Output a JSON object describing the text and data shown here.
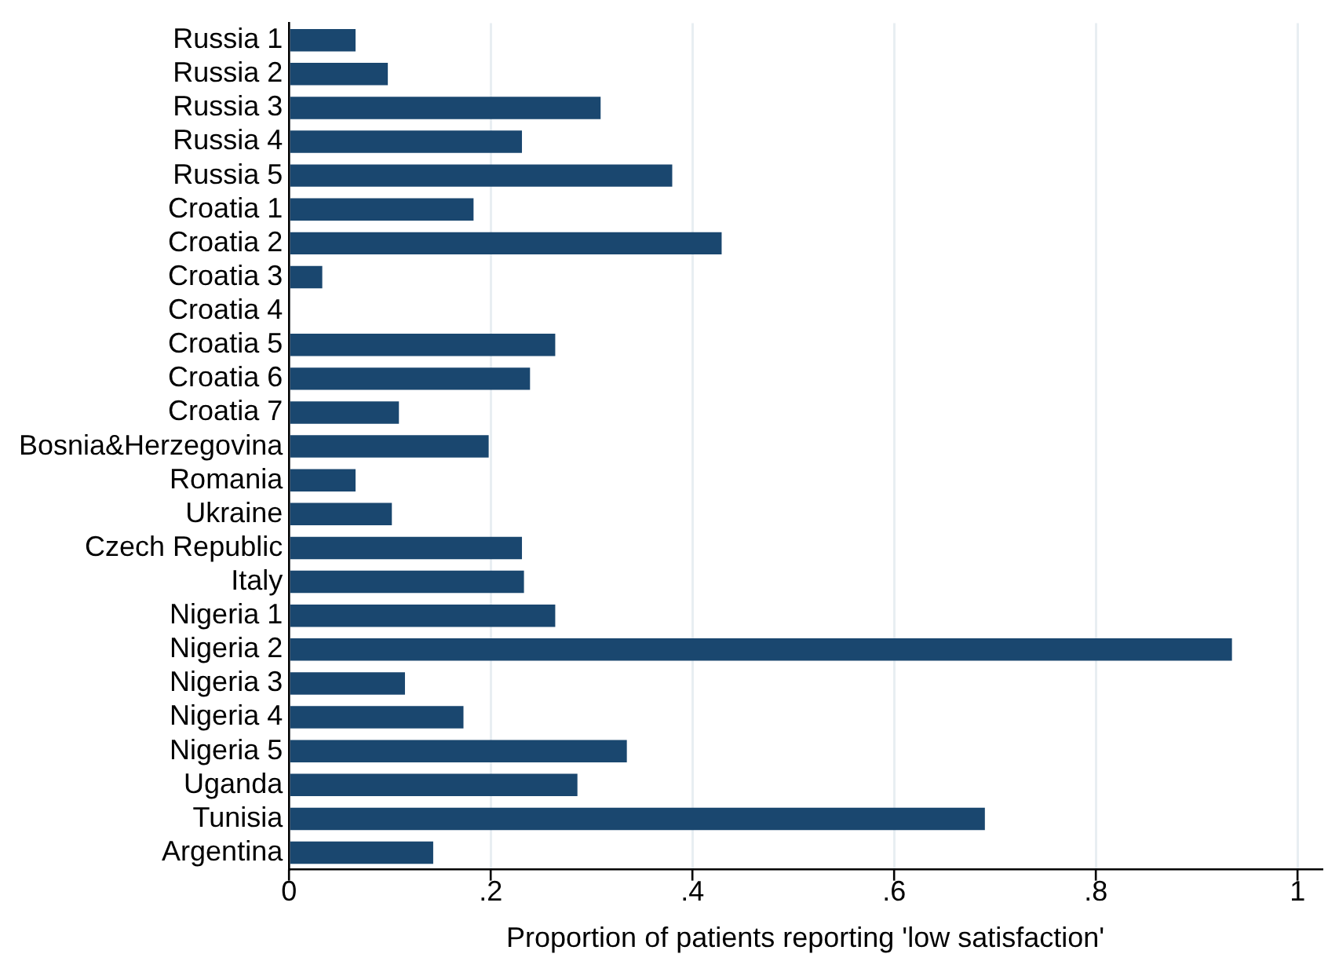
{
  "chart_data": {
    "type": "bar",
    "orientation": "horizontal",
    "xlabel": "Proportion of patients reporting 'low satisfaction'",
    "categories": [
      "Russia 1",
      "Russia 2",
      "Russia 3",
      "Russia 4",
      "Russia 5",
      "Croatia 1",
      "Croatia 2",
      "Croatia 3",
      "Croatia 4",
      "Croatia 5",
      "Croatia 6",
      "Croatia 7",
      "Bosnia&Herzegovina",
      "Romania",
      "Ukraine",
      "Czech Republic",
      "Italy",
      "Nigeria 1",
      "Nigeria 2",
      "Nigeria 3",
      "Nigeria 4",
      "Nigeria 5",
      "Uganda",
      "Tunisia",
      "Argentina"
    ],
    "values": [
      0.066,
      0.098,
      0.309,
      0.231,
      0.38,
      0.183,
      0.429,
      0.033,
      0,
      0.264,
      0.239,
      0.109,
      0.198,
      0.066,
      0.102,
      0.231,
      0.233,
      0.264,
      0.935,
      0.115,
      0.173,
      0.335,
      0.286,
      0.69,
      0.143
    ],
    "color": "#1a476f",
    "xlim": [
      0,
      1.024
    ],
    "xticks": [
      0,
      {
        "value": 0.2,
        "label": ".2"
      },
      {
        "value": 0.4,
        "label": ".4"
      },
      {
        "value": 0.6,
        "label": ".6"
      },
      {
        "value": 0.8,
        "label": ".8"
      },
      1
    ],
    "grid": "x",
    "legend": false
  }
}
